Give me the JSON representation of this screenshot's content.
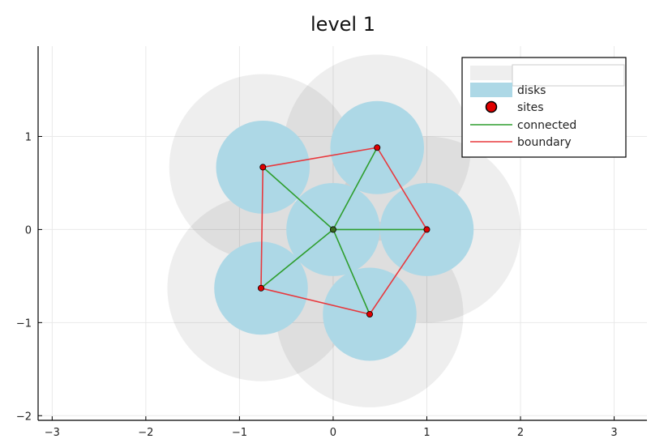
{
  "chart_data": {
    "type": "scatter",
    "title": "level 1",
    "xlabel": "",
    "ylabel": "",
    "xlim": [
      -3.15,
      3.35
    ],
    "ylim": [
      -2.05,
      1.97
    ],
    "xticks": [
      -3,
      -2,
      -1,
      0,
      1,
      2,
      3
    ],
    "yticks": [
      -2,
      -1,
      0,
      1
    ],
    "grid": true,
    "legend_position": "top-right",
    "colors": {
      "outer_disk": "#ebebeb",
      "disk": "#add8e6",
      "site": "#e00000",
      "connected": "#2e9e2e",
      "boundary": "#e8383d",
      "center_site": "#3a6b1e"
    },
    "sites": [
      {
        "x": 0.0,
        "y": 0.0
      },
      {
        "x": 0.47,
        "y": 0.88
      },
      {
        "x": 1.0,
        "y": 0.0
      },
      {
        "x": 0.39,
        "y": -0.91
      },
      {
        "x": -0.77,
        "y": -0.63
      },
      {
        "x": -0.75,
        "y": 0.67
      }
    ],
    "disk_radius": 0.5,
    "outer_disks": [
      {
        "x": 0.47,
        "y": 0.88,
        "r": 1.0
      },
      {
        "x": 1.0,
        "y": 0.0,
        "r": 1.0
      },
      {
        "x": 0.39,
        "y": -0.91,
        "r": 1.0
      },
      {
        "x": -0.77,
        "y": -0.63,
        "r": 1.0
      },
      {
        "x": -0.75,
        "y": 0.67,
        "r": 1.0
      }
    ],
    "connected_edges": [
      [
        0,
        1
      ],
      [
        0,
        2
      ],
      [
        0,
        3
      ],
      [
        0,
        4
      ],
      [
        0,
        5
      ]
    ],
    "boundary_edges": [
      [
        1,
        2
      ],
      [
        2,
        3
      ],
      [
        3,
        4
      ],
      [
        4,
        5
      ],
      [
        5,
        1
      ]
    ],
    "legend": [
      {
        "label": "",
        "kind": "outer-disk"
      },
      {
        "label": "disks",
        "kind": "disk"
      },
      {
        "label": "sites",
        "kind": "site"
      },
      {
        "label": "connected",
        "kind": "connected"
      },
      {
        "label": "boundary",
        "kind": "boundary"
      }
    ]
  }
}
